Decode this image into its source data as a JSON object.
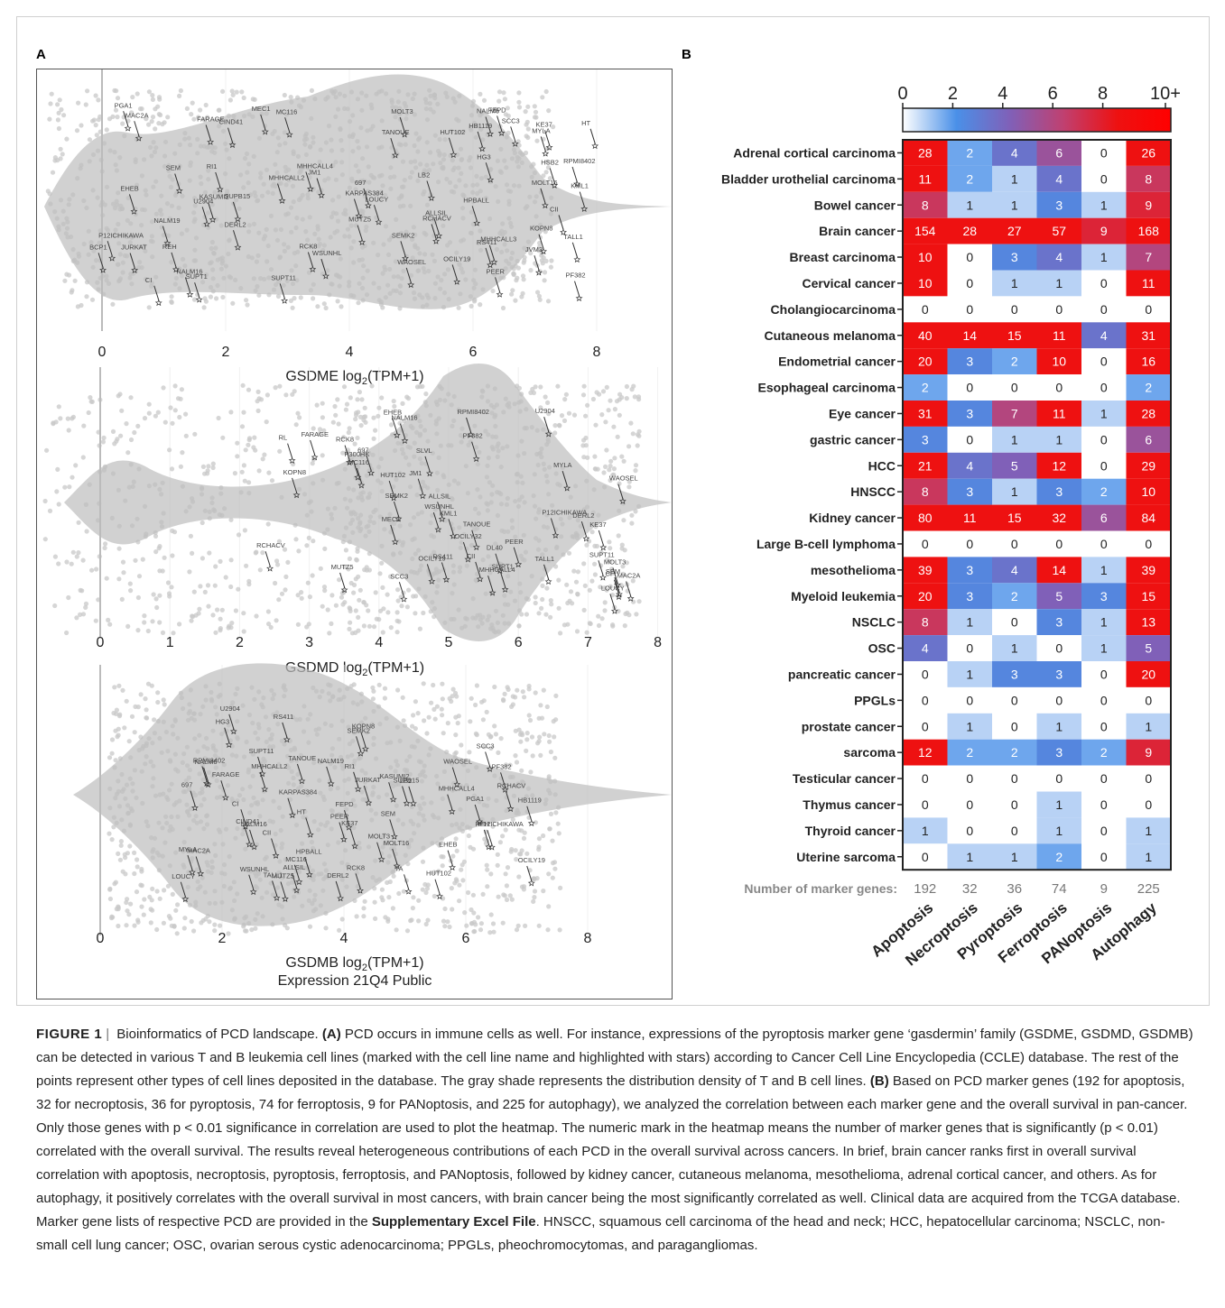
{
  "panels": {
    "a_label": "A",
    "b_label": "B"
  },
  "violins": [
    {
      "id": "gsdme",
      "xlabel_prefix": "GSDME log",
      "xlabel_sub": "2",
      "xlabel_suffix": "(TPM+1)",
      "ticks": [
        "0",
        "2",
        "4",
        "6",
        "8"
      ],
      "labels": [
        "MYLA",
        "P12ICHIKAWA",
        "PEER",
        "BCP1",
        "HPBALL",
        "MOLT16",
        "RPMI8402",
        "SUPT1",
        "NALM19",
        "U2904",
        "NALM16",
        "697",
        "MUTZ5",
        "HG3",
        "WAOSEL",
        "MHHCALL2",
        "HSB2",
        "KASUMI2",
        "SUPB15",
        "MEC1",
        "MC116",
        "KE37",
        "WSUNHL",
        "EHEB",
        "LB2",
        "RS411",
        "MHHCALL3",
        "FEPD",
        "HT",
        "REH",
        "PGA1",
        "HUT102",
        "FARAGE",
        "DERL2",
        "NALM6",
        "TANOUE",
        "KML1",
        "SCC3",
        "PF382",
        "RCHACV",
        "JM1",
        "SEM",
        "CI",
        "MAC2A",
        "SEMK2",
        "JVM3",
        "HB1119",
        "MHHCALL4",
        "KOPN8",
        "ALLSIL",
        "TALL1",
        "SUPT11",
        "OCILY19",
        "KARPAS384",
        "RI1",
        "MOLT3",
        "CII",
        "LOUCY",
        "JURKAT",
        "RCK8",
        "CIND41"
      ]
    },
    {
      "id": "gsdmd",
      "xlabel_prefix": "GSDMD log",
      "xlabel_sub": "2",
      "xlabel_suffix": "(TPM+1)",
      "ticks": [
        "0",
        "1",
        "2",
        "3",
        "4",
        "5",
        "6",
        "7",
        "8"
      ],
      "labels": [
        "MYLA",
        "WAOSEL",
        "NALM16",
        "PEER",
        "U2904",
        "MEC1",
        "P12ICHIKAWA",
        "697",
        "MUTZ5",
        "SLVL",
        "DL40",
        "SUPT1",
        "RPMI8402",
        "WSUNHL",
        "MC116",
        "KE37",
        "EHEB",
        "HUT102",
        "KOPN8",
        "RCHACV",
        "RS411",
        "FARAGE",
        "P300HK",
        "SCC3",
        "OCILY19",
        "TANOUE",
        "PF382",
        "DERL2",
        "MHHCALL4",
        "ALLSIL",
        "MAC2A",
        "RL",
        "CI",
        "KML1",
        "JM1",
        "SEMK2",
        "SEM",
        "TALL1",
        "SUPT11",
        "MOLT3",
        "CII",
        "OCILY32",
        "RCK8",
        "LOUCY"
      ]
    },
    {
      "id": "gsdmb",
      "xlabel_prefix": "GSDMB log",
      "xlabel_sub": "2",
      "xlabel_suffix": "(TPM+1)",
      "xlabel_line2": "Expression 21Q4 Public",
      "ticks": [
        "0",
        "2",
        "4",
        "6",
        "8"
      ],
      "labels": [
        "U2904",
        "697",
        "MUTZ5",
        "NALM16",
        "PEER",
        "NALM19",
        "HG3",
        "MHHCALL2",
        "WAOSEL",
        "HPBALL",
        "MOLT16",
        "P12ICHIKAWA",
        "MYLA",
        "SUPB15",
        "RPMI8402",
        "KE37",
        "TA",
        "MC116",
        "KASUMI2",
        "EHEB",
        "WSUNHL",
        "HUT102",
        "CIND41",
        "KOPN8",
        "REH",
        "FEPD",
        "LB2",
        "RS411",
        "PGA1",
        "HT",
        "SCC3",
        "RCHACV",
        "OCILY19",
        "FARAGE",
        "MAC2A",
        "TANOUE",
        "MHHCALL4",
        "NALM6",
        "DERL2",
        "CI",
        "HB1119",
        "SEM",
        "SEMK2",
        "ALLSIL",
        "PF382",
        "JURKAT",
        "MOLT3",
        "RCK8",
        "KARPAS384",
        "RI1",
        "SUPT11",
        "TALL1",
        "LOUCY",
        "CII"
      ]
    }
  ],
  "heatmap": {
    "colorbar_ticks": [
      "0",
      "2",
      "4",
      "6",
      "8",
      "10+"
    ],
    "colorbar_colors": [
      "#ffffff",
      "#4a90e8",
      "#8060b8",
      "#c04070",
      "#ee1111",
      "#ff0000"
    ],
    "footer_label": "Number of marker genes:"
  },
  "chart_data": {
    "type": "heatmap",
    "columns": [
      "Apoptosis",
      "Necroptosis",
      "Pyroptosis",
      "Ferroptosis",
      "PANoptosis",
      "Autophagy"
    ],
    "marker_gene_counts": [
      "192",
      "32",
      "36",
      "74",
      "9",
      "225"
    ],
    "rows": [
      "Adrenal cortical carcinoma",
      "Bladder urothelial carcinoma",
      "Bowel cancer",
      "Brain cancer",
      "Breast carcinoma",
      "Cervical cancer",
      "Cholangiocarcinoma",
      "Cutaneous melanoma",
      "Endometrial cancer",
      "Esophageal carcinoma",
      "Eye cancer",
      "gastric cancer",
      "HCC",
      "HNSCC",
      "Kidney cancer",
      "Large B-cell lymphoma",
      "mesothelioma",
      "Myeloid leukemia",
      "NSCLC",
      "OSC",
      "pancreatic cancer",
      "PPGLs",
      "prostate cancer",
      "sarcoma",
      "Testicular cancer",
      "Thymus cancer",
      "Thyroid cancer",
      "Uterine sarcoma"
    ],
    "values": [
      [
        28,
        2,
        4,
        6,
        0,
        26
      ],
      [
        11,
        2,
        1,
        4,
        0,
        8
      ],
      [
        8,
        1,
        1,
        3,
        1,
        9
      ],
      [
        154,
        28,
        27,
        57,
        9,
        168
      ],
      [
        10,
        0,
        3,
        4,
        1,
        7
      ],
      [
        10,
        0,
        1,
        1,
        0,
        11
      ],
      [
        0,
        0,
        0,
        0,
        0,
        0
      ],
      [
        40,
        14,
        15,
        11,
        4,
        31
      ],
      [
        20,
        3,
        2,
        10,
        0,
        16
      ],
      [
        2,
        0,
        0,
        0,
        0,
        2
      ],
      [
        31,
        3,
        7,
        11,
        1,
        28
      ],
      [
        3,
        0,
        1,
        1,
        0,
        6
      ],
      [
        21,
        4,
        5,
        12,
        0,
        29
      ],
      [
        8,
        3,
        1,
        3,
        2,
        10
      ],
      [
        80,
        11,
        15,
        32,
        6,
        84
      ],
      [
        0,
        0,
        0,
        0,
        0,
        0
      ],
      [
        39,
        3,
        4,
        14,
        1,
        39
      ],
      [
        20,
        3,
        2,
        5,
        3,
        15
      ],
      [
        8,
        1,
        0,
        3,
        1,
        13
      ],
      [
        4,
        0,
        1,
        0,
        1,
        5
      ],
      [
        0,
        1,
        3,
        3,
        0,
        20
      ],
      [
        0,
        0,
        0,
        0,
        0,
        0
      ],
      [
        0,
        1,
        0,
        1,
        0,
        1
      ],
      [
        12,
        2,
        2,
        3,
        2,
        9
      ],
      [
        0,
        0,
        0,
        0,
        0,
        0
      ],
      [
        0,
        0,
        0,
        1,
        0,
        0
      ],
      [
        1,
        0,
        0,
        1,
        0,
        1
      ],
      [
        0,
        1,
        1,
        2,
        0,
        1
      ]
    ],
    "color_range": [
      0,
      10
    ]
  },
  "caption": {
    "figure_label": "FIGURE 1",
    "separator": "|",
    "title": "Bioinformatics of PCD landscape.",
    "part_a_label": "(A)",
    "part_a_text": "PCD occurs in immune cells as well. For instance, expressions of the pyroptosis marker gene ‘gasdermin’ family (GSDME, GSDMD, GSDMB) can be detected in various T and B leukemia cell lines (marked with the cell line name and highlighted with stars) according to Cancer Cell Line Encyclopedia (CCLE) database. The rest of the points represent other types of cell lines deposited in the database. The gray shade represents the distribution density of T and B cell lines.",
    "part_b_label": "(B)",
    "part_b_text": "Based on PCD marker genes (192 for apoptosis, 32 for necroptosis, 36 for pyroptosis, 74 for ferroptosis, 9 for PANoptosis, and 225 for autophagy), we analyzed the correlation between each marker gene and the overall survival in pan-cancer. Only those genes with p < 0.01 significance in correlation are used to plot the heatmap. The numeric mark in the heatmap means the number of marker genes that is significantly (p < 0.01) correlated with the overall survival. The results reveal heterogeneous contributions of each PCD in the overall survival across cancers. In brief, brain cancer ranks first in overall survival correlation with apoptosis, necroptosis, pyroptosis, ferroptosis, and PANoptosis, followed by kidney cancer, cutaneous melanoma, mesothelioma, adrenal cortical cancer, and others. As for autophagy, it positively correlates with the overall survival in most cancers, with brain cancer being the most significantly correlated as well. Clinical data are acquired from the TCGA database. Marker gene lists of respective PCD are provided in the",
    "supp_file": "Supplementary Excel File",
    "abbrev_text": ". HNSCC, squamous cell carcinoma of the head and neck; HCC, hepatocellular carcinoma; NSCLC, non-small cell lung cancer; OSC, ovarian serous cystic adenocarcinoma; PPGLs, pheochromocytomas, and paragangliomas."
  }
}
